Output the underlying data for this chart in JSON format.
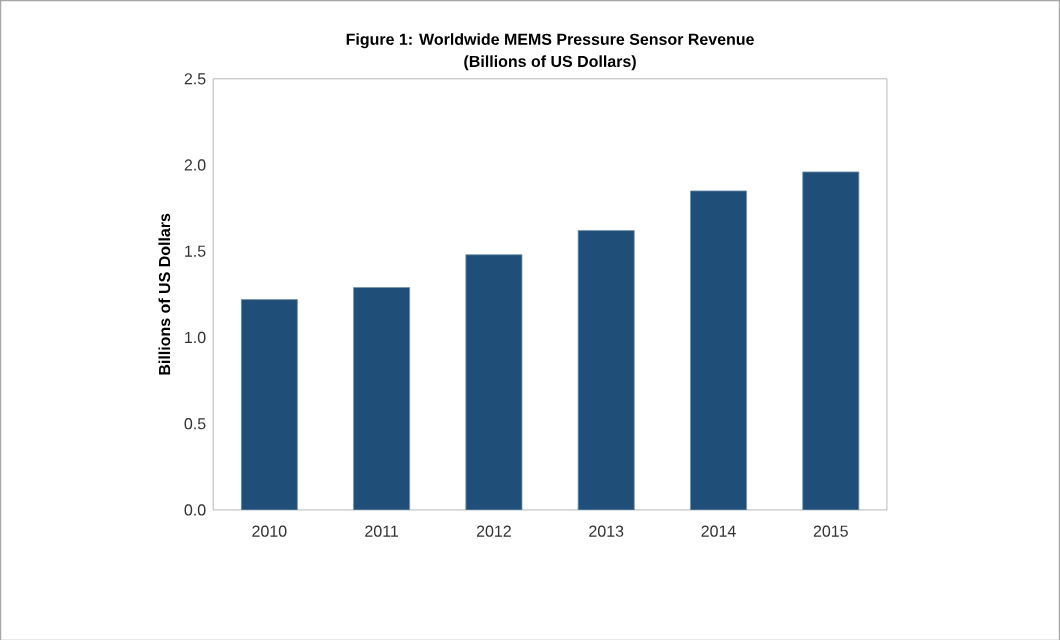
{
  "chart_data": {
    "type": "bar",
    "title": "Figure 1: Worldwide MEMS Pressure Sensor Revenue",
    "subtitle": "(Billions of US Dollars)",
    "ylabel": "Billions of US Dollars",
    "categories": [
      "2010",
      "2011",
      "2012",
      "2013",
      "2014",
      "2015"
    ],
    "values": [
      1.22,
      1.29,
      1.48,
      1.62,
      1.85,
      1.96
    ],
    "color": "#1f4e79",
    "ylim": [
      0,
      2.5
    ],
    "yticks": [
      {
        "value": 0,
        "label": "0.0"
      },
      {
        "value": 0.5,
        "label": "0.5"
      },
      {
        "value": 1,
        "label": "1.0"
      },
      {
        "value": 1.5,
        "label": "1.5"
      },
      {
        "value": 2,
        "label": "2.0"
      },
      {
        "value": 2.5,
        "label": "2.5"
      }
    ]
  }
}
